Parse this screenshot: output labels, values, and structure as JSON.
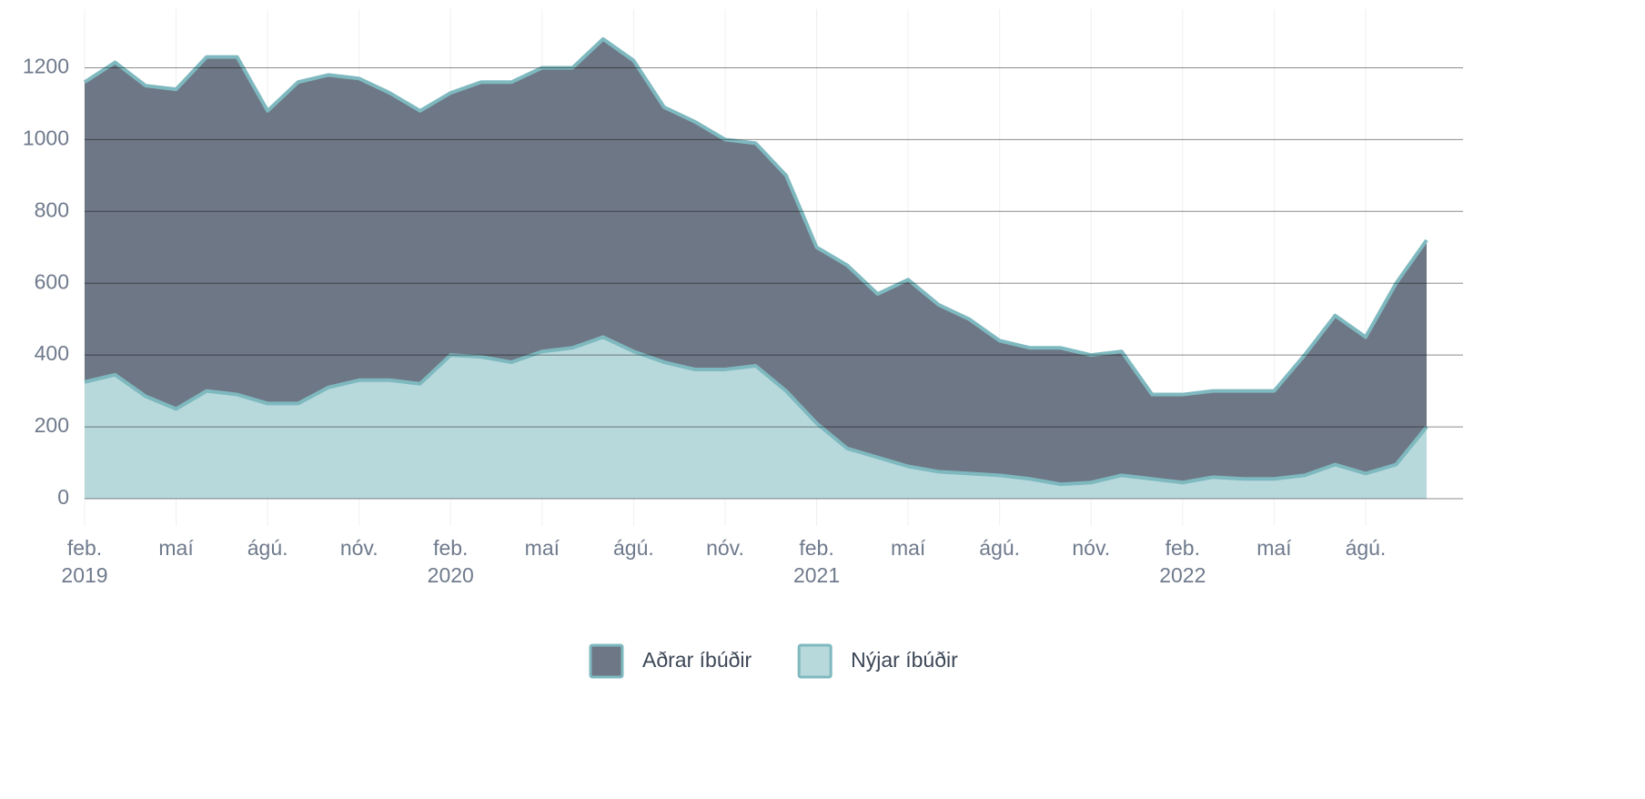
{
  "chart_data": {
    "type": "stacked_area",
    "x": [
      "2019-02",
      "2019-03",
      "2019-04",
      "2019-05",
      "2019-06",
      "2019-07",
      "2019-08",
      "2019-09",
      "2019-10",
      "2019-11",
      "2019-12",
      "2020-01",
      "2020-02",
      "2020-03",
      "2020-04",
      "2020-05",
      "2020-06",
      "2020-07",
      "2020-08",
      "2020-09",
      "2020-10",
      "2020-11",
      "2020-12",
      "2021-01",
      "2021-02",
      "2021-03",
      "2021-04",
      "2021-05",
      "2021-06",
      "2021-07",
      "2021-08",
      "2021-09",
      "2021-10",
      "2021-11",
      "2021-12",
      "2022-01",
      "2022-02",
      "2022-03",
      "2022-04",
      "2022-05",
      "2022-06",
      "2022-07",
      "2022-08",
      "2022-09",
      "2022-10"
    ],
    "series": [
      {
        "name": "Nýjar íbúðir",
        "color": "#b8d9dc",
        "values": [
          325,
          345,
          285,
          250,
          300,
          290,
          265,
          265,
          310,
          330,
          330,
          320,
          400,
          395,
          380,
          410,
          420,
          450,
          410,
          380,
          360,
          360,
          370,
          300,
          210,
          140,
          115,
          90,
          75,
          70,
          65,
          55,
          40,
          45,
          65,
          55,
          45,
          60,
          55,
          55,
          65,
          95,
          70,
          95,
          200
        ]
      },
      {
        "name": "Aðrar íbúðir",
        "color": "#6e7785",
        "values": [
          835,
          870,
          865,
          890,
          930,
          940,
          815,
          895,
          870,
          840,
          800,
          760,
          730,
          765,
          780,
          790,
          780,
          830,
          810,
          710,
          690,
          640,
          620,
          600,
          490,
          510,
          455,
          520,
          465,
          430,
          375,
          365,
          380,
          355,
          345,
          235,
          245,
          240,
          245,
          245,
          335,
          415,
          380,
          505,
          520
        ]
      }
    ],
    "line_color": "#7fb9c0",
    "xlim": [
      "2019-02",
      "2022-10"
    ],
    "xticks": [
      {
        "value": "2019-02",
        "label": "feb. 2019"
      },
      {
        "value": "2019-05",
        "label": "maí"
      },
      {
        "value": "2019-08",
        "label": "ágú."
      },
      {
        "value": "2019-11",
        "label": "nóv."
      },
      {
        "value": "2020-02",
        "label": "feb. 2020"
      },
      {
        "value": "2020-05",
        "label": "maí"
      },
      {
        "value": "2020-08",
        "label": "ágú."
      },
      {
        "value": "2020-11",
        "label": "nóv."
      },
      {
        "value": "2021-02",
        "label": "feb. 2021"
      },
      {
        "value": "2021-05",
        "label": "maí"
      },
      {
        "value": "2021-08",
        "label": "ágú."
      },
      {
        "value": "2021-11",
        "label": "nóv."
      },
      {
        "value": "2022-02",
        "label": "feb. 2022"
      },
      {
        "value": "2022-05",
        "label": "maí"
      },
      {
        "value": "2022-08",
        "label": "ágú."
      }
    ],
    "ylim": [
      0,
      1300
    ],
    "yticks": [
      0,
      200,
      400,
      600,
      800,
      1000,
      1200
    ],
    "grid": true,
    "legend": "bottom"
  }
}
